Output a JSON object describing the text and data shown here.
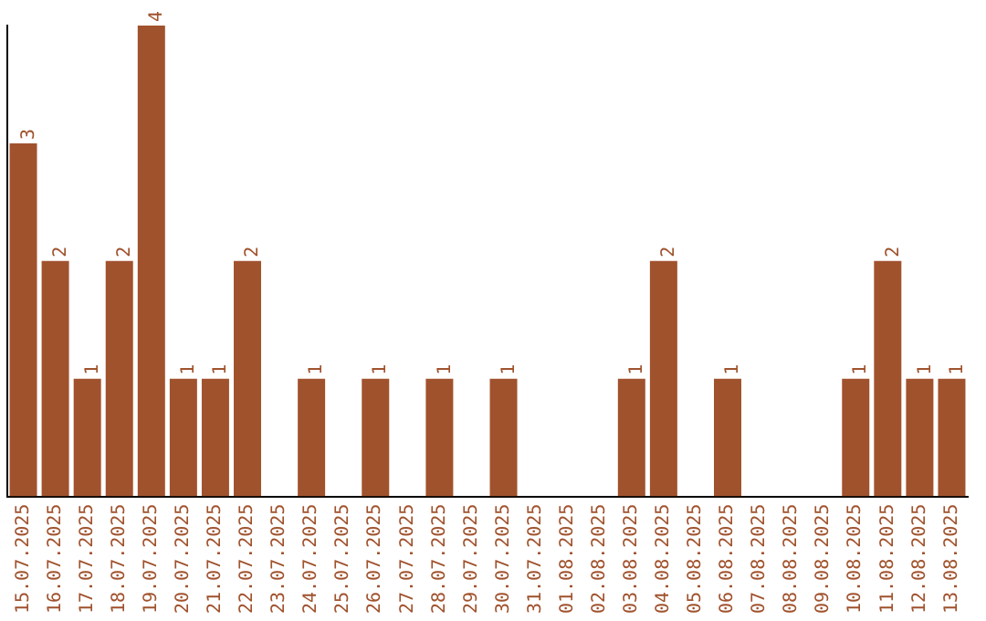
{
  "chart_data": {
    "type": "bar",
    "categories": [
      "15.07.2025",
      "16.07.2025",
      "17.07.2025",
      "18.07.2025",
      "19.07.2025",
      "20.07.2025",
      "21.07.2025",
      "22.07.2025",
      "23.07.2025",
      "24.07.2025",
      "25.07.2025",
      "26.07.2025",
      "27.07.2025",
      "28.07.2025",
      "29.07.2025",
      "30.07.2025",
      "31.07.2025",
      "01.08.2025",
      "02.08.2025",
      "03.08.2025",
      "04.08.2025",
      "05.08.2025",
      "06.08.2025",
      "07.08.2025",
      "08.08.2025",
      "09.08.2025",
      "10.08.2025",
      "11.08.2025",
      "12.08.2025",
      "13.08.2025"
    ],
    "values": [
      3,
      2,
      1,
      2,
      4,
      1,
      1,
      2,
      0,
      1,
      0,
      1,
      0,
      1,
      0,
      1,
      0,
      0,
      0,
      1,
      2,
      0,
      1,
      0,
      0,
      0,
      1,
      2,
      1,
      1
    ],
    "value_labels": [
      "3",
      "2",
      "1",
      "2",
      "4",
      "1",
      "1",
      "2",
      null,
      "1",
      null,
      "1",
      null,
      "1",
      null,
      "1",
      null,
      null,
      null,
      "1",
      "2",
      null,
      "1",
      null,
      null,
      null,
      "1",
      "2",
      "1",
      "1"
    ],
    "color": "#a0522d",
    "grid": false,
    "legend": false,
    "tick_labels": "x"
  }
}
